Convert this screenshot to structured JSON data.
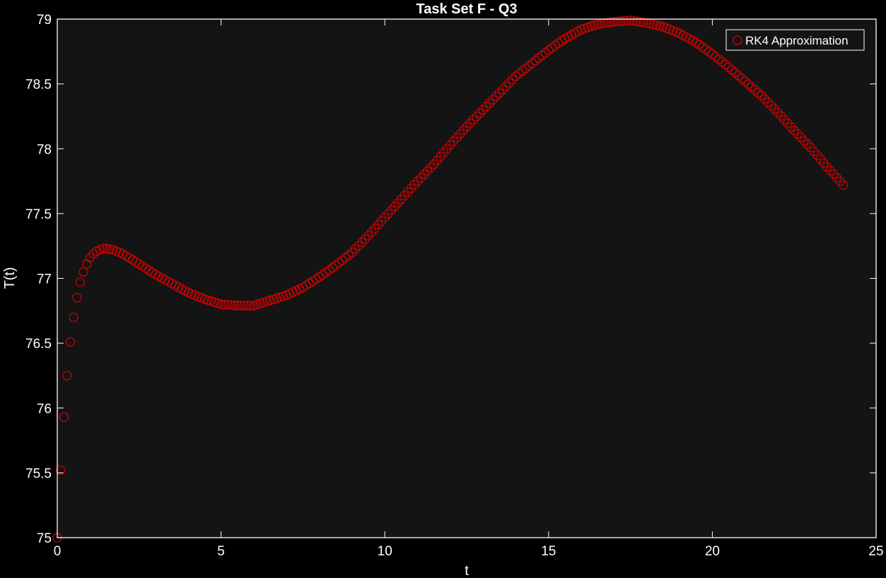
{
  "chart_data": {
    "type": "scatter",
    "title": "Task Set F - Q3",
    "xlabel": "t",
    "ylabel": "T(t)",
    "xlim": [
      0,
      25
    ],
    "ylim": [
      75,
      79
    ],
    "xticks": [
      0,
      5,
      10,
      15,
      20,
      25
    ],
    "yticks": [
      75,
      75.5,
      76,
      76.5,
      77,
      77.5,
      78,
      78.5,
      79
    ],
    "grid": false,
    "legend_position": "top-right",
    "marker": "open-circle",
    "colors": {
      "figure_bg": "#000000",
      "axes_bg": "#141414",
      "axes_line": "#ffffff",
      "marker": "#d40000",
      "text": "#ffffff"
    },
    "series": [
      {
        "name": "RK4 Approximation",
        "x_start": 0,
        "x_end": 24,
        "x_step": 0.1,
        "anchor_points": [
          [
            0,
            75.0
          ],
          [
            0.1,
            75.52
          ],
          [
            0.2,
            75.93
          ],
          [
            0.3,
            76.25
          ],
          [
            0.4,
            76.51
          ],
          [
            0.5,
            76.7
          ],
          [
            0.6,
            76.85
          ],
          [
            0.7,
            76.97
          ],
          [
            0.8,
            77.05
          ],
          [
            0.9,
            77.11
          ],
          [
            1.0,
            77.16
          ],
          [
            1.1,
            77.19
          ],
          [
            1.2,
            77.21
          ],
          [
            1.3,
            77.22
          ],
          [
            1.4,
            77.23
          ],
          [
            1.5,
            77.23
          ],
          [
            1.7,
            77.22
          ],
          [
            2.0,
            77.19
          ],
          [
            2.5,
            77.11
          ],
          [
            3.0,
            77.03
          ],
          [
            3.5,
            76.96
          ],
          [
            4.0,
            76.89
          ],
          [
            4.5,
            76.84
          ],
          [
            5.0,
            76.8
          ],
          [
            5.5,
            76.79
          ],
          [
            6.0,
            76.79
          ],
          [
            6.5,
            76.83
          ],
          [
            7.0,
            76.87
          ],
          [
            7.5,
            76.93
          ],
          [
            8.0,
            77.01
          ],
          [
            8.5,
            77.1
          ],
          [
            9.0,
            77.2
          ],
          [
            9.5,
            77.33
          ],
          [
            10.0,
            77.47
          ],
          [
            10.5,
            77.61
          ],
          [
            11.0,
            77.75
          ],
          [
            11.5,
            77.88
          ],
          [
            12.0,
            78.03
          ],
          [
            12.5,
            78.17
          ],
          [
            13.0,
            78.3
          ],
          [
            13.5,
            78.43
          ],
          [
            14.0,
            78.56
          ],
          [
            14.5,
            78.66
          ],
          [
            15.0,
            78.76
          ],
          [
            15.5,
            78.85
          ],
          [
            16.0,
            78.92
          ],
          [
            16.5,
            78.96
          ],
          [
            17.0,
            78.98
          ],
          [
            17.5,
            78.99
          ],
          [
            18.0,
            78.97
          ],
          [
            18.5,
            78.94
          ],
          [
            19.0,
            78.89
          ],
          [
            19.5,
            78.82
          ],
          [
            20.0,
            78.73
          ],
          [
            20.5,
            78.63
          ],
          [
            21.0,
            78.52
          ],
          [
            21.5,
            78.41
          ],
          [
            22.0,
            78.28
          ],
          [
            22.5,
            78.14
          ],
          [
            23.0,
            78.01
          ],
          [
            23.5,
            77.86
          ],
          [
            24.0,
            77.72
          ]
        ]
      }
    ]
  }
}
